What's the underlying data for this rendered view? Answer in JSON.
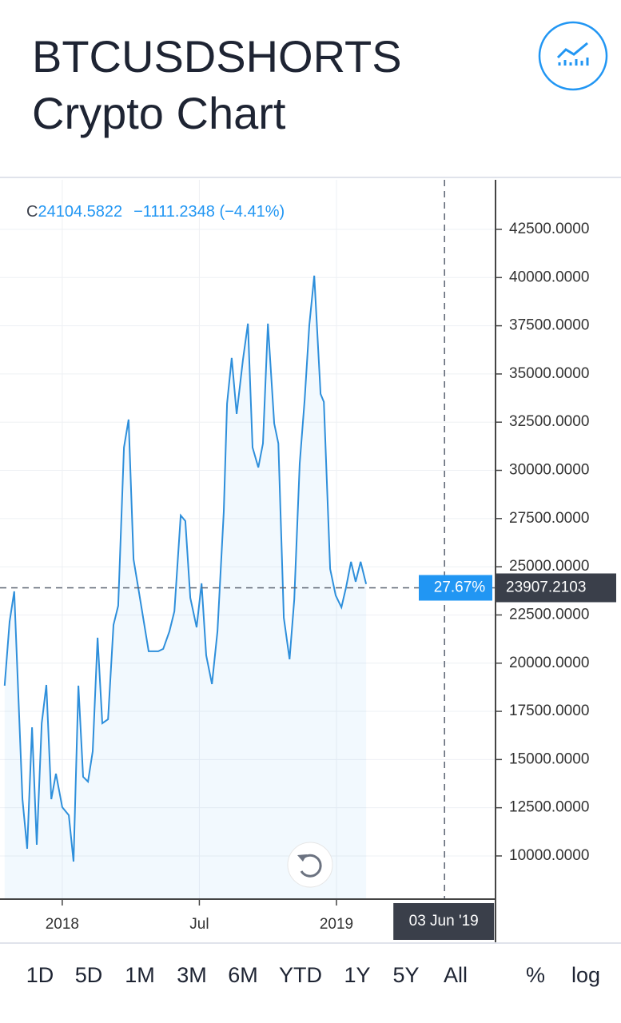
{
  "header": {
    "title_line1": "BTCUSDSHORTS",
    "title_line2": "Crypto Chart"
  },
  "chart_data": {
    "type": "line",
    "legend": {
      "prefix": "C",
      "close": "24104.5822",
      "change": "−1111.2348 (−4.41%)"
    },
    "x": [
      2017.79,
      2017.808,
      2017.825,
      2017.855,
      2017.872,
      2017.89,
      2017.907,
      2017.925,
      2017.942,
      2017.96,
      2017.977,
      2018.0,
      2018.024,
      2018.041,
      2018.059,
      2018.076,
      2018.094,
      2018.111,
      2018.129,
      2018.146,
      2018.167,
      2018.187,
      2018.204,
      2018.225,
      2018.242,
      2018.26,
      2018.277,
      2018.315,
      2018.333,
      2018.35,
      2018.368,
      2018.391,
      2018.409,
      2018.432,
      2018.449,
      2018.467,
      2018.49,
      2018.508,
      2018.525,
      2018.546,
      2018.566,
      2018.589,
      2018.601,
      2018.618,
      2018.636,
      2018.659,
      2018.677,
      2018.694,
      2018.715,
      2018.732,
      2018.75,
      2018.773,
      2018.788,
      2018.808,
      2018.829,
      2018.846,
      2018.866,
      2018.884,
      2018.901,
      2018.919,
      2018.942,
      2018.954,
      2018.977,
      2018.997,
      2019.018,
      2019.035,
      2019.053,
      2019.07,
      2019.088,
      2019.108
    ],
    "series": [
      {
        "color": "#2e8fdb",
        "values": [
          18831,
          22148,
          23723,
          12944,
          10373,
          16675,
          10580,
          16882,
          18872,
          12944,
          14270,
          12529,
          12114,
          9710,
          18831,
          14105,
          13856,
          15431,
          21319,
          16882,
          17090,
          21982,
          22977,
          31186,
          32637,
          25382,
          23931,
          20614,
          20614,
          20614,
          20738,
          21650,
          22687,
          27662,
          27372,
          23392,
          21858,
          24138,
          20406,
          18914,
          21650,
          27869,
          33466,
          35830,
          32927,
          35747,
          37612,
          31186,
          30150,
          31393,
          37612,
          32430,
          31393,
          22355,
          20199,
          23309,
          30357,
          33674,
          37529,
          40100,
          33964,
          33549,
          24884,
          23516,
          22894,
          23931,
          25257,
          24221,
          25257,
          24104.5822
        ]
      }
    ],
    "xlim": [
      2017.773,
      2019.58
    ],
    "xticks": [
      {
        "value": 2018,
        "label": "2018"
      },
      {
        "value": 2018.5,
        "label": "Jul"
      },
      {
        "value": 2019,
        "label": "2019"
      }
    ],
    "ylim": [
      7760,
      45070
    ],
    "yticks": [
      {
        "value": 10000,
        "label": "10000.0000"
      },
      {
        "value": 12500,
        "label": "12500.0000"
      },
      {
        "value": 15000,
        "label": "15000.0000"
      },
      {
        "value": 17500,
        "label": "17500.0000"
      },
      {
        "value": 20000,
        "label": "20000.0000"
      },
      {
        "value": 22500,
        "label": "22500.0000"
      },
      {
        "value": 25000,
        "label": "25000.0000"
      },
      {
        "value": 27500,
        "label": "27500.0000"
      },
      {
        "value": 30000,
        "label": "30000.0000"
      },
      {
        "value": 32500,
        "label": "32500.0000"
      },
      {
        "value": 35000,
        "label": "35000.0000"
      },
      {
        "value": 37500,
        "label": "37500.0000"
      },
      {
        "value": 40000,
        "label": "40000.0000"
      },
      {
        "value": 42500,
        "label": "42500.0000"
      }
    ],
    "grid": true,
    "price_line": {
      "value": 23907.2103,
      "percent_label": "27.67%"
    },
    "crosshair": {
      "x": 2019.394,
      "label": "03 Jun '19"
    }
  },
  "toolbar": {
    "ranges": [
      "1D",
      "5D",
      "1M",
      "3M",
      "6M",
      "YTD",
      "1Y",
      "5Y",
      "All"
    ],
    "percent": "%",
    "log": "log"
  }
}
